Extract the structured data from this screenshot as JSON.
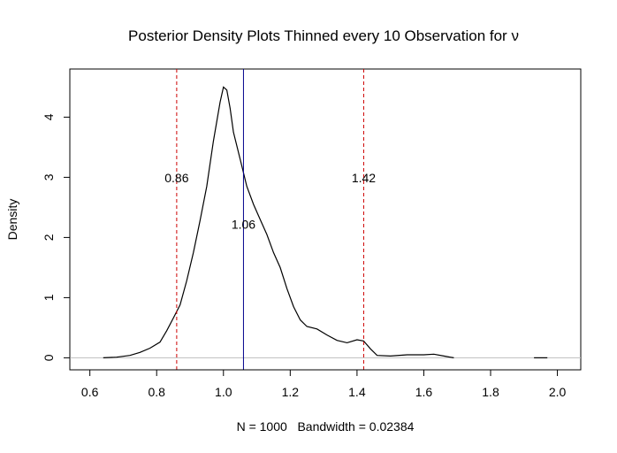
{
  "chart_data": {
    "type": "line",
    "title": "Posterior Density Plots Thinned every 10 Observation for ν",
    "xlabel": "N = 1000   Bandwidth = 0.02384",
    "ylabel": "Density",
    "xlim": [
      0.54,
      2.07
    ],
    "ylim": [
      -0.2,
      4.8
    ],
    "x_ticks": [
      0.6,
      0.8,
      1.0,
      1.2,
      1.4,
      1.6,
      1.8,
      2.0
    ],
    "x_tick_labels": [
      "0.6",
      "0.8",
      "1.0",
      "1.2",
      "1.4",
      "1.6",
      "1.8",
      "2.0"
    ],
    "y_ticks": [
      0,
      1,
      2,
      3,
      4
    ],
    "y_tick_labels": [
      "0",
      "1",
      "2",
      "3",
      "4"
    ],
    "grid": false,
    "baseline": 0,
    "baseline_color": "#bebebe",
    "series": [
      {
        "color": "#000000",
        "points": [
          [
            0.64,
            0.0
          ],
          [
            0.68,
            0.01
          ],
          [
            0.72,
            0.04
          ],
          [
            0.75,
            0.09
          ],
          [
            0.78,
            0.16
          ],
          [
            0.81,
            0.26
          ],
          [
            0.83,
            0.45
          ],
          [
            0.85,
            0.66
          ],
          [
            0.87,
            0.88
          ],
          [
            0.89,
            1.28
          ],
          [
            0.91,
            1.75
          ],
          [
            0.93,
            2.28
          ],
          [
            0.95,
            2.85
          ],
          [
            0.97,
            3.6
          ],
          [
            0.99,
            4.25
          ],
          [
            1.0,
            4.5
          ],
          [
            1.01,
            4.45
          ],
          [
            1.02,
            4.15
          ],
          [
            1.03,
            3.75
          ],
          [
            1.05,
            3.3
          ],
          [
            1.07,
            2.85
          ],
          [
            1.09,
            2.55
          ],
          [
            1.11,
            2.3
          ],
          [
            1.13,
            2.05
          ],
          [
            1.15,
            1.75
          ],
          [
            1.17,
            1.5
          ],
          [
            1.19,
            1.15
          ],
          [
            1.21,
            0.85
          ],
          [
            1.23,
            0.63
          ],
          [
            1.25,
            0.52
          ],
          [
            1.28,
            0.48
          ],
          [
            1.31,
            0.38
          ],
          [
            1.34,
            0.29
          ],
          [
            1.37,
            0.25
          ],
          [
            1.4,
            0.3
          ],
          [
            1.42,
            0.28
          ],
          [
            1.44,
            0.15
          ],
          [
            1.46,
            0.04
          ],
          [
            1.5,
            0.03
          ],
          [
            1.55,
            0.05
          ],
          [
            1.6,
            0.05
          ],
          [
            1.63,
            0.06
          ],
          [
            1.66,
            0.03
          ],
          [
            1.69,
            0.0
          ]
        ]
      },
      {
        "color": "#000000",
        "points": [
          [
            1.93,
            0.0
          ],
          [
            1.97,
            0.0
          ]
        ]
      }
    ],
    "vlines": [
      {
        "x": 0.86,
        "label": "0.86",
        "color": "#cd0000",
        "style": "dashed",
        "label_y": 2.99
      },
      {
        "x": 1.06,
        "label": "1.06",
        "color": "#00008b",
        "style": "solid",
        "label_y": 2.22
      },
      {
        "x": 1.42,
        "label": "1.42",
        "color": "#cd0000",
        "style": "dashed",
        "label_y": 2.99
      }
    ]
  }
}
